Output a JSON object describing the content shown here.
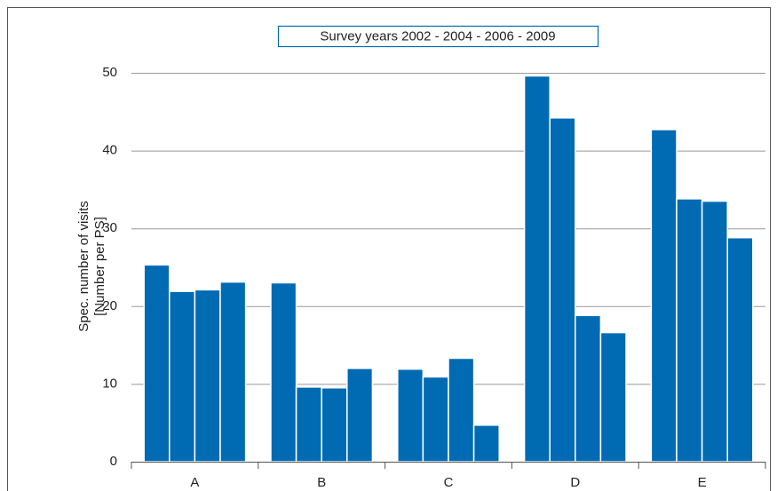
{
  "chart_data": {
    "type": "bar",
    "legend_text": "Survey years 2002 - 2004 - 2006 - 2009",
    "y_label": [
      "Spec. number of visits",
      "[Number per PS]"
    ],
    "categories": [
      "A",
      "B",
      "C",
      "D",
      "E"
    ],
    "series": [
      {
        "color": "#006ab3",
        "values": [
          25.3,
          23.0,
          11.9,
          49.6,
          42.7
        ]
      },
      {
        "color": "#006ab3",
        "values": [
          21.9,
          9.6,
          10.9,
          44.2,
          33.8
        ]
      },
      {
        "color": "#006ab3",
        "values": [
          22.1,
          9.5,
          13.3,
          18.8,
          33.5
        ]
      },
      {
        "color": "#006ab3",
        "values": [
          23.1,
          12.0,
          4.7,
          16.6,
          28.8
        ]
      }
    ],
    "ylim": [
      0,
      50
    ],
    "yticks": [
      0,
      10,
      20,
      30,
      40,
      50
    ],
    "grid": true
  }
}
